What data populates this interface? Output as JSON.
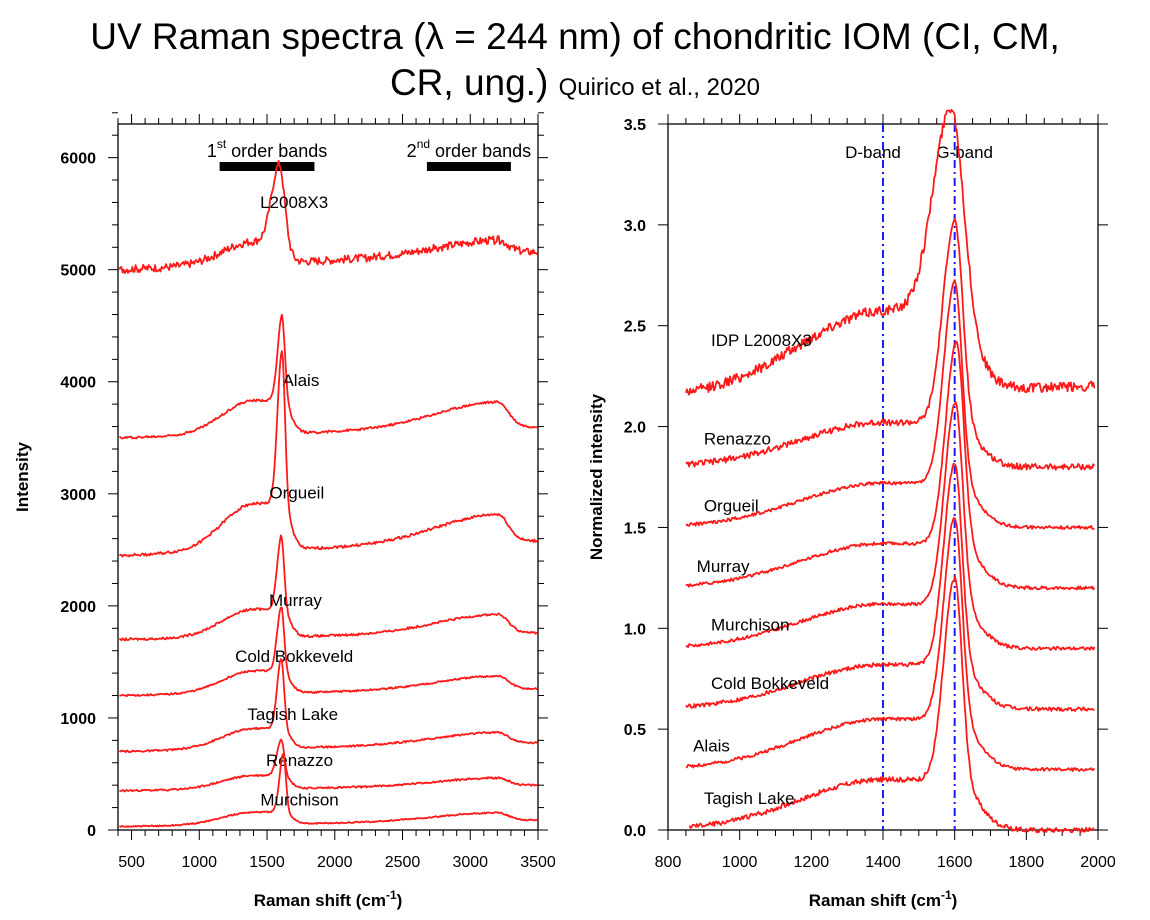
{
  "title": {
    "line1": "UV Raman spectra (λ = 244 nm) of chondritic IOM (CI, CM,",
    "line2": "CR, ung.)",
    "citation": "Quirico et al., 2020"
  },
  "colors": {
    "spectrum": "#ff1a1a",
    "band_line": "#1a1aff",
    "axis": "#000000"
  },
  "chart_data": [
    {
      "type": "line",
      "xlabel": "Raman shift (cm-1)",
      "xlabel_main": "Raman shift (cm",
      "xlabel_sup": "-1",
      "xlabel_close": ")",
      "ylabel": "Intensity",
      "xlim": [
        400,
        3500
      ],
      "ylim": [
        0,
        6300
      ],
      "xticks": [
        500,
        1000,
        1500,
        2000,
        2500,
        3000,
        3500
      ],
      "yticks": [
        0,
        1000,
        2000,
        3000,
        4000,
        5000,
        6000
      ],
      "annotations": {
        "first_order": {
          "num": "1",
          "sup": "st",
          "text": "order bands",
          "x_range": [
            1150,
            1850
          ]
        },
        "second_order": {
          "num": "2",
          "sup": "nd",
          "text": "order bands",
          "x_range": [
            2680,
            3300
          ]
        }
      },
      "series": [
        {
          "name": "L2008X3",
          "label_x": 1700,
          "label_y": 5550,
          "peak_x": 1590,
          "base_left": 5000,
          "base_right": 5160,
          "peak_height": 680,
          "width": 45,
          "shoulder": 200,
          "second_order": 120,
          "noise": 35
        },
        {
          "name": "Alais",
          "label_x": 1750,
          "label_y": 3960,
          "peak_x": 1610,
          "base_left": 3500,
          "base_right": 3600,
          "peak_height": 750,
          "width": 25,
          "shoulder": 300,
          "second_order": 230,
          "noise": 10
        },
        {
          "name": "Orgueil",
          "label_x": 1720,
          "label_y": 2960,
          "peak_x": 1610,
          "base_left": 2450,
          "base_right": 2580,
          "peak_height": 1350,
          "width": 26,
          "shoulder": 420,
          "second_order": 250,
          "noise": 12
        },
        {
          "name": "Murray",
          "label_x": 1710,
          "label_y": 2000,
          "peak_x": 1605,
          "base_left": 1700,
          "base_right": 1760,
          "peak_height": 650,
          "width": 24,
          "shoulder": 250,
          "second_order": 170,
          "noise": 10
        },
        {
          "name": "Cold Bokkeveld",
          "label_x": 1700,
          "label_y": 1500,
          "peak_x": 1605,
          "base_left": 1200,
          "base_right": 1260,
          "peak_height": 570,
          "width": 24,
          "shoulder": 200,
          "second_order": 120,
          "noise": 8
        },
        {
          "name": "Tagish Lake",
          "label_x": 1690,
          "label_y": 980,
          "peak_x": 1605,
          "base_left": 700,
          "base_right": 780,
          "peak_height": 620,
          "width": 24,
          "shoulder": 180,
          "second_order": 100,
          "noise": 8
        },
        {
          "name": "Renazzo",
          "label_x": 1740,
          "label_y": 570,
          "peak_x": 1605,
          "base_left": 350,
          "base_right": 400,
          "peak_height": 320,
          "width": 26,
          "shoulder": 120,
          "second_order": 70,
          "noise": 8
        },
        {
          "name": "Murchison",
          "label_x": 1740,
          "label_y": 220,
          "peak_x": 1620,
          "base_left": 30,
          "base_right": 90,
          "peak_height": 520,
          "width": 22,
          "shoulder": 110,
          "second_order": 70,
          "noise": 6
        }
      ]
    },
    {
      "type": "line",
      "xlabel": "Raman shift (cm-1)",
      "xlabel_main": "Raman shift (cm",
      "xlabel_sup": "-1",
      "xlabel_close": ")",
      "ylabel": "Normalized intensity",
      "xlim": [
        800,
        2000
      ],
      "ylim": [
        0,
        3.5
      ],
      "xticks": [
        800,
        1000,
        1200,
        1400,
        1600,
        1800,
        2000
      ],
      "yticks": [
        0.0,
        0.5,
        1.0,
        1.5,
        2.0,
        2.5,
        3.0,
        3.5
      ],
      "ytick_labels": [
        "0.0",
        "0.5",
        "1.0",
        "1.5",
        "2.0",
        "2.5",
        "3.0",
        "3.5"
      ],
      "band_lines": [
        {
          "name": "D-band",
          "x": 1400
        },
        {
          "name": "G-band",
          "x": 1600
        }
      ],
      "series": [
        {
          "name": "IDP L2008X3",
          "label_x": 920,
          "label_y": 2.4,
          "x_start": 850,
          "peak_x": 1590,
          "base_left": 2.15,
          "base_right": 2.2,
          "peak_height": 1.0,
          "width": 40,
          "shoulder": 0.4,
          "noise": 0.025
        },
        {
          "name": "Renazzo",
          "label_x": 900,
          "label_y": 1.91,
          "x_start": 850,
          "peak_x": 1600,
          "base_left": 1.8,
          "base_right": 1.8,
          "peak_height": 1.0,
          "width": 26,
          "shoulder": 0.22,
          "noise": 0.015
        },
        {
          "name": "Orgueil",
          "label_x": 900,
          "label_y": 1.58,
          "x_start": 850,
          "peak_x": 1600,
          "base_left": 1.5,
          "base_right": 1.5,
          "peak_height": 1.0,
          "width": 24,
          "shoulder": 0.22,
          "noise": 0.008
        },
        {
          "name": "Murray",
          "label_x": 880,
          "label_y": 1.28,
          "x_start": 850,
          "peak_x": 1605,
          "base_left": 1.2,
          "base_right": 1.2,
          "peak_height": 1.0,
          "width": 24,
          "shoulder": 0.22,
          "noise": 0.008
        },
        {
          "name": "Murchison",
          "label_x": 920,
          "label_y": 0.99,
          "x_start": 850,
          "peak_x": 1602,
          "base_left": 0.9,
          "base_right": 0.9,
          "peak_height": 1.0,
          "width": 24,
          "shoulder": 0.22,
          "noise": 0.008
        },
        {
          "name": "Cold Bokkeveld",
          "label_x": 920,
          "label_y": 0.7,
          "x_start": 850,
          "peak_x": 1600,
          "base_left": 0.6,
          "base_right": 0.6,
          "peak_height": 1.0,
          "width": 24,
          "shoulder": 0.22,
          "noise": 0.01
        },
        {
          "name": "Alais",
          "label_x": 870,
          "label_y": 0.39,
          "x_start": 850,
          "peak_x": 1600,
          "base_left": 0.3,
          "base_right": 0.3,
          "peak_height": 1.0,
          "width": 24,
          "shoulder": 0.25,
          "noise": 0.008
        },
        {
          "name": "Tagish Lake",
          "label_x": 900,
          "label_y": 0.13,
          "x_start": 860,
          "peak_x": 1600,
          "base_left": 0.0,
          "base_right": 0.0,
          "peak_height": 1.0,
          "width": 24,
          "shoulder": 0.25,
          "noise": 0.012
        }
      ]
    }
  ]
}
